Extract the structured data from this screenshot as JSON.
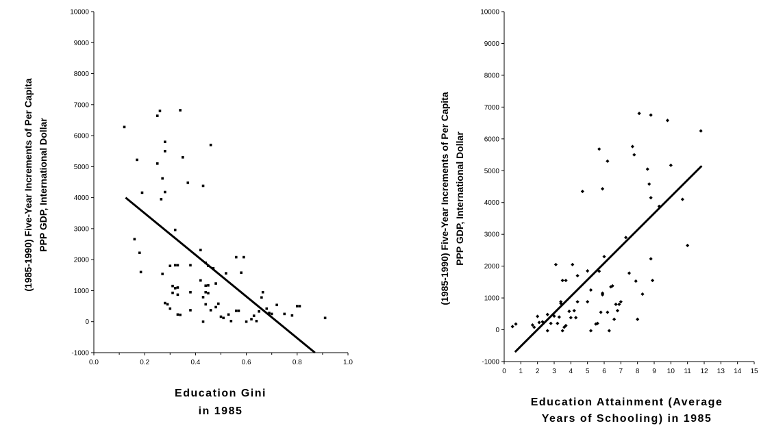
{
  "chart_data": [
    {
      "type": "scatter",
      "title": "",
      "xlabel": [
        "Education Gini",
        "in 1985"
      ],
      "ylabel": [
        "(1985-1990) Five-Year Increments of Per Capita",
        "PPP GDP,  International Dollar"
      ],
      "xlim": [
        0,
        1
      ],
      "ylim": [
        -1000,
        10000
      ],
      "xticks": [
        "0.0",
        "0.2",
        "0.4",
        "0.6",
        "0.8",
        "1.0"
      ],
      "yticks": [
        "-1000",
        "0",
        "1000",
        "2000",
        "3000",
        "4000",
        "5000",
        "6000",
        "7000",
        "8000",
        "9000",
        "10000"
      ],
      "grid": false,
      "marker": "square",
      "points": [
        [
          0.12,
          6280
        ],
        [
          0.17,
          5220
        ],
        [
          0.19,
          4160
        ],
        [
          0.16,
          2660
        ],
        [
          0.18,
          2220
        ],
        [
          0.185,
          1600
        ],
        [
          0.25,
          6640
        ],
        [
          0.26,
          6800
        ],
        [
          0.34,
          6820
        ],
        [
          0.25,
          5100
        ],
        [
          0.28,
          5800
        ],
        [
          0.28,
          5500
        ],
        [
          0.27,
          4620
        ],
        [
          0.265,
          3950
        ],
        [
          0.28,
          4180
        ],
        [
          0.35,
          5300
        ],
        [
          0.37,
          4480
        ],
        [
          0.46,
          5700
        ],
        [
          0.43,
          4380
        ],
        [
          0.32,
          2960
        ],
        [
          0.42,
          2310
        ],
        [
          0.3,
          1800
        ],
        [
          0.32,
          1820
        ],
        [
          0.33,
          1820
        ],
        [
          0.38,
          1820
        ],
        [
          0.44,
          1900
        ],
        [
          0.45,
          1800
        ],
        [
          0.47,
          1720
        ],
        [
          0.52,
          1560
        ],
        [
          0.56,
          2080
        ],
        [
          0.59,
          2080
        ],
        [
          0.58,
          1580
        ],
        [
          0.27,
          1540
        ],
        [
          0.31,
          1150
        ],
        [
          0.32,
          1080
        ],
        [
          0.33,
          1100
        ],
        [
          0.38,
          950
        ],
        [
          0.42,
          1330
        ],
        [
          0.44,
          1160
        ],
        [
          0.45,
          1170
        ],
        [
          0.48,
          1230
        ],
        [
          0.44,
          950
        ],
        [
          0.45,
          920
        ],
        [
          0.31,
          930
        ],
        [
          0.33,
          870
        ],
        [
          0.43,
          790
        ],
        [
          0.28,
          600
        ],
        [
          0.29,
          560
        ],
        [
          0.3,
          420
        ],
        [
          0.33,
          230
        ],
        [
          0.34,
          220
        ],
        [
          0.38,
          370
        ],
        [
          0.43,
          0
        ],
        [
          0.44,
          560
        ],
        [
          0.46,
          370
        ],
        [
          0.48,
          470
        ],
        [
          0.49,
          580
        ],
        [
          0.5,
          160
        ],
        [
          0.51,
          120
        ],
        [
          0.53,
          230
        ],
        [
          0.54,
          20
        ],
        [
          0.56,
          350
        ],
        [
          0.57,
          350
        ],
        [
          0.6,
          0
        ],
        [
          0.62,
          80
        ],
        [
          0.63,
          190
        ],
        [
          0.64,
          20
        ],
        [
          0.65,
          330
        ],
        [
          0.66,
          780
        ],
        [
          0.665,
          950
        ],
        [
          0.68,
          420
        ],
        [
          0.69,
          280
        ],
        [
          0.7,
          250
        ],
        [
          0.72,
          540
        ],
        [
          0.75,
          250
        ],
        [
          0.78,
          200
        ],
        [
          0.8,
          500
        ],
        [
          0.81,
          500
        ],
        [
          0.91,
          120
        ]
      ],
      "trendline": [
        [
          0.125,
          4000
        ],
        [
          0.87,
          -1000
        ]
      ]
    },
    {
      "type": "scatter",
      "title": "",
      "xlabel": [
        "Education Attainment (Average",
        "Years of Schooling) in 1985"
      ],
      "ylabel": [
        "(1985-1990) Five-Year Increments of Per Capita",
        "PPP GDP, International Dollar"
      ],
      "xlim": [
        0,
        15
      ],
      "ylim": [
        -1000,
        10000
      ],
      "xticks": [
        "0",
        "1",
        "2",
        "3",
        "4",
        "5",
        "6",
        "7",
        "8",
        "9",
        "10",
        "11",
        "12",
        "13",
        "14",
        "15"
      ],
      "yticks": [
        "-1000",
        "0",
        "1000",
        "2000",
        "3000",
        "4000",
        "5000",
        "6000",
        "7000",
        "8000",
        "9000",
        "10000"
      ],
      "grid": false,
      "marker": "diamond",
      "points": [
        [
          0.5,
          100
        ],
        [
          0.7,
          180
        ],
        [
          1.7,
          150
        ],
        [
          1.8,
          80
        ],
        [
          2.0,
          420
        ],
        [
          2.1,
          230
        ],
        [
          2.3,
          250
        ],
        [
          2.6,
          480
        ],
        [
          2.6,
          -30
        ],
        [
          2.8,
          200
        ],
        [
          3.0,
          430
        ],
        [
          3.1,
          2050
        ],
        [
          3.2,
          200
        ],
        [
          3.3,
          400
        ],
        [
          3.4,
          830
        ],
        [
          3.4,
          880
        ],
        [
          3.5,
          1550
        ],
        [
          3.5,
          -30
        ],
        [
          3.6,
          80
        ],
        [
          3.7,
          1550
        ],
        [
          3.7,
          130
        ],
        [
          3.9,
          580
        ],
        [
          4.0,
          380
        ],
        [
          4.1,
          2050
        ],
        [
          4.2,
          600
        ],
        [
          4.3,
          380
        ],
        [
          4.4,
          1700
        ],
        [
          4.4,
          880
        ],
        [
          4.7,
          4350
        ],
        [
          5.0,
          1850
        ],
        [
          5.0,
          880
        ],
        [
          5.2,
          1250
        ],
        [
          5.2,
          -30
        ],
        [
          5.5,
          180
        ],
        [
          5.6,
          200
        ],
        [
          5.7,
          1840
        ],
        [
          5.7,
          5680
        ],
        [
          5.8,
          550
        ],
        [
          5.9,
          1150
        ],
        [
          5.9,
          1100
        ],
        [
          5.9,
          4430
        ],
        [
          6.0,
          2300
        ],
        [
          6.2,
          5300
        ],
        [
          6.2,
          550
        ],
        [
          6.3,
          -30
        ],
        [
          6.4,
          1350
        ],
        [
          6.5,
          1380
        ],
        [
          6.6,
          330
        ],
        [
          6.7,
          800
        ],
        [
          6.8,
          600
        ],
        [
          6.9,
          800
        ],
        [
          7.0,
          880
        ],
        [
          7.3,
          2900
        ],
        [
          7.5,
          1780
        ],
        [
          7.7,
          5760
        ],
        [
          7.8,
          5500
        ],
        [
          7.9,
          1530
        ],
        [
          8.0,
          330
        ],
        [
          8.1,
          6800
        ],
        [
          8.3,
          1120
        ],
        [
          8.6,
          5050
        ],
        [
          8.7,
          4580
        ],
        [
          8.8,
          4150
        ],
        [
          8.8,
          6750
        ],
        [
          8.8,
          2230
        ],
        [
          8.9,
          1550
        ],
        [
          9.3,
          3880
        ],
        [
          9.8,
          6580
        ],
        [
          10.0,
          5170
        ],
        [
          10.7,
          4100
        ],
        [
          11.0,
          2650
        ],
        [
          11.8,
          6250
        ]
      ],
      "trendline": [
        [
          0.65,
          -700
        ],
        [
          11.85,
          5150
        ]
      ]
    }
  ]
}
